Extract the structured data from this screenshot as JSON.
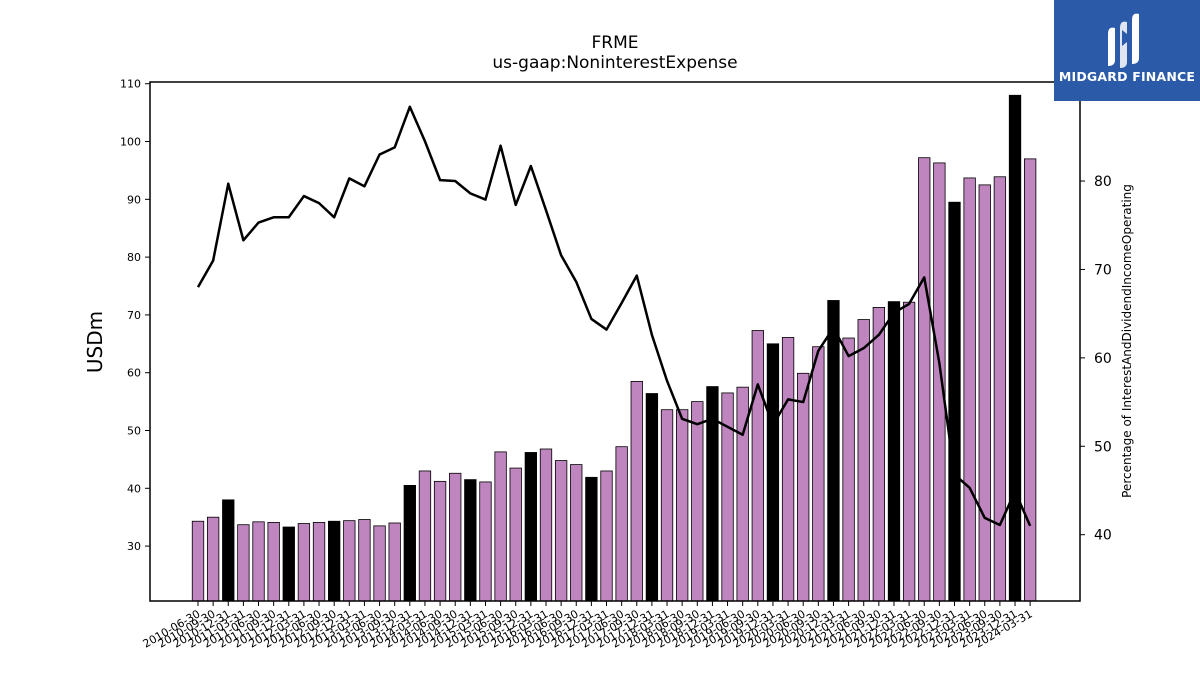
{
  "chart_data": {
    "type": "bar",
    "title": "FRME",
    "subtitle": "us-gaap:NoninterestExpense",
    "ylabel": "USDm",
    "ylabel_right": "Percentage of InterestAndDividendIncomeOperating",
    "ylim": [
      20.5,
      110.3
    ],
    "ylim_right": [
      32.5,
      91.2
    ],
    "yticks": [
      30,
      40,
      50,
      60,
      70,
      80,
      90,
      100,
      110
    ],
    "yticks_right": [
      40,
      50,
      60,
      70,
      80
    ],
    "categories": [
      "2010-06-30",
      "2010-09-30",
      "2010-12-31",
      "2011-03-31",
      "2011-06-30",
      "2011-09-30",
      "2011-12-31",
      "2012-03-31",
      "2012-06-30",
      "2012-09-30",
      "2012-12-31",
      "2013-03-31",
      "2013-06-30",
      "2013-09-30",
      "2013-12-31",
      "2014-03-31",
      "2014-06-30",
      "2014-09-30",
      "2014-12-31",
      "2015-03-31",
      "2015-06-30",
      "2015-09-30",
      "2015-12-31",
      "2016-03-31",
      "2016-06-30",
      "2016-09-30",
      "2016-12-31",
      "2017-03-31",
      "2017-06-30",
      "2017-09-30",
      "2017-12-31",
      "2018-03-31",
      "2018-06-30",
      "2018-09-30",
      "2018-12-31",
      "2019-03-31",
      "2019-06-30",
      "2019-09-30",
      "2019-12-31",
      "2020-03-31",
      "2020-06-30",
      "2020-09-30",
      "2020-12-31",
      "2021-03-31",
      "2021-06-30",
      "2021-09-30",
      "2021-12-31",
      "2022-03-31",
      "2022-06-30",
      "2022-09-30",
      "2022-12-31",
      "2023-03-31",
      "2023-06-30",
      "2023-09-30",
      "2023-12-31",
      "2024-03-31"
    ],
    "values": [
      34.3,
      35.0,
      38.0,
      33.7,
      34.2,
      34.1,
      33.3,
      33.9,
      34.1,
      34.3,
      34.4,
      34.6,
      33.5,
      34.0,
      40.5,
      43.0,
      41.2,
      42.6,
      41.5,
      41.1,
      46.3,
      43.5,
      46.2,
      46.8,
      44.8,
      44.1,
      41.9,
      43.0,
      47.2,
      58.5,
      56.4,
      53.6,
      53.6,
      55.0,
      57.6,
      56.5,
      57.5,
      67.3,
      65.0,
      66.1,
      59.9,
      64.5,
      72.5,
      66.0,
      69.2,
      71.3,
      72.3,
      72.2,
      97.2,
      96.3,
      89.5,
      93.7,
      92.5,
      93.9,
      108.0,
      97.0
    ],
    "highlight_colors": [
      "#bf85bf",
      "#bf85bf",
      "#000000",
      "#bf85bf",
      "#bf85bf",
      "#bf85bf",
      "#000000",
      "#bf85bf",
      "#bf85bf",
      "#000000",
      "#bf85bf",
      "#bf85bf",
      "#bf85bf",
      "#bf85bf",
      "#000000",
      "#bf85bf",
      "#bf85bf",
      "#bf85bf",
      "#000000",
      "#bf85bf",
      "#bf85bf",
      "#bf85bf",
      "#000000",
      "#bf85bf",
      "#bf85bf",
      "#bf85bf",
      "#000000",
      "#bf85bf",
      "#bf85bf",
      "#bf85bf",
      "#000000",
      "#bf85bf",
      "#bf85bf",
      "#bf85bf",
      "#000000",
      "#bf85bf",
      "#bf85bf",
      "#bf85bf",
      "#000000",
      "#bf85bf",
      "#bf85bf",
      "#bf85bf",
      "#000000",
      "#bf85bf",
      "#bf85bf",
      "#bf85bf",
      "#000000",
      "#bf85bf",
      "#bf85bf",
      "#bf85bf",
      "#000000",
      "#bf85bf",
      "#bf85bf",
      "#bf85bf",
      "#000000",
      "#bf85bf"
    ],
    "line_values": [
      68.0,
      71.0,
      79.7,
      73.3,
      75.3,
      75.9,
      75.9,
      78.3,
      77.5,
      75.9,
      80.3,
      79.4,
      83.0,
      83.8,
      88.4,
      84.5,
      80.1,
      80.0,
      78.6,
      77.9,
      84.0,
      77.3,
      81.7,
      76.7,
      71.6,
      68.6,
      64.4,
      63.2,
      66.2,
      69.3,
      62.6,
      57.4,
      53.1,
      52.5,
      53.1,
      52.2,
      51.3,
      57.0,
      52.4,
      55.3,
      55.0,
      60.8,
      63.4,
      60.2,
      61.1,
      62.6,
      65.1,
      66.1,
      69.1,
      59.4,
      46.8,
      45.3,
      41.9,
      41.1,
      44.9,
      41.0
    ],
    "colors": {
      "bar": "#bf85bf",
      "bar_highlight": "#000000",
      "line": "#000000"
    }
  },
  "logo": {
    "text": "MIDGARD FINANCE"
  }
}
